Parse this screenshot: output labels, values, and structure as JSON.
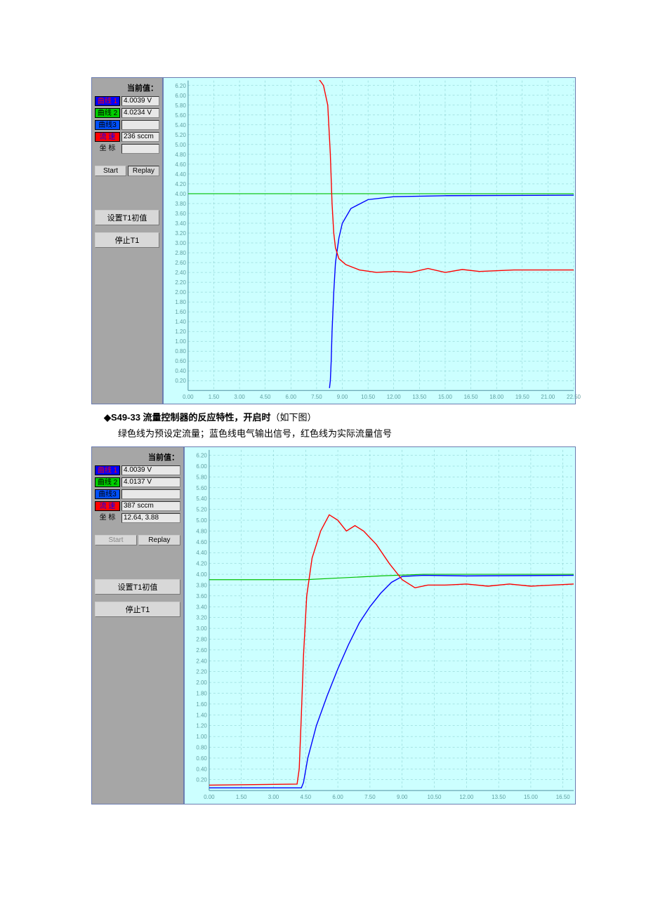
{
  "caption": {
    "title_bold": "◆S49-33 流量控制器的反应特性，开启时",
    "title_rest": "（如下图）",
    "subtitle": "绿色线为预设定流量；蓝色线电气输出信号，红色线为实际流量信号"
  },
  "panel1": {
    "current_label": "当前值：",
    "curve1": {
      "label": "曲线 1",
      "value": "4.0039 V",
      "color": "#0000ff",
      "text": "#ff0000"
    },
    "curve2": {
      "label": "曲线 2",
      "value": "4.0234 V",
      "color": "#00d000",
      "text": "#000000"
    },
    "curve3": {
      "label": "曲线3",
      "value": "",
      "color": "#0050ff",
      "text": "#000000"
    },
    "flow": {
      "label": "流 速",
      "value": "236 sccm",
      "color": "#ff0000",
      "text": "#0000ff"
    },
    "coord": {
      "label": "坐 标",
      "value": ""
    },
    "start": "Start",
    "replay": "Replay",
    "setT1": "设置T1初值",
    "stopT1": "停止T1",
    "chart": {
      "bg": "#ccffff",
      "grid": "#7fc8c8",
      "axis": "#5090a0",
      "tick_color": "#5f9ea0",
      "tick_fontsize": 8,
      "ylim": [
        0,
        6.3
      ],
      "yticks": [
        0.2,
        0.4,
        0.6,
        0.8,
        1.0,
        1.2,
        1.4,
        1.6,
        1.8,
        2.0,
        2.2,
        2.4,
        2.6,
        2.8,
        3.0,
        3.2,
        3.4,
        3.6,
        3.8,
        4.0,
        4.2,
        4.4,
        4.6,
        4.8,
        5.0,
        5.2,
        5.4,
        5.6,
        5.8,
        6.0,
        6.2
      ],
      "xlim": [
        0,
        22.5
      ],
      "xticks": [
        0.0,
        1.5,
        3.0,
        4.5,
        6.0,
        7.5,
        9.0,
        10.5,
        12.0,
        13.5,
        15.0,
        16.5,
        18.0,
        19.5,
        21.0,
        22.5
      ],
      "green": {
        "color": "#00c000",
        "width": 1.2,
        "points": [
          [
            0,
            4.0
          ],
          [
            22.5,
            4.0
          ]
        ]
      },
      "blue": {
        "color": "#0000ff",
        "width": 1.4,
        "points": [
          [
            8.25,
            0.05
          ],
          [
            8.3,
            0.2
          ],
          [
            8.35,
            0.6
          ],
          [
            8.4,
            1.2
          ],
          [
            8.5,
            2.0
          ],
          [
            8.6,
            2.6
          ],
          [
            8.8,
            3.1
          ],
          [
            9.0,
            3.4
          ],
          [
            9.5,
            3.7
          ],
          [
            10.5,
            3.88
          ],
          [
            12.0,
            3.94
          ],
          [
            15.0,
            3.96
          ],
          [
            22.5,
            3.97
          ]
        ]
      },
      "red": {
        "color": "#ff0000",
        "width": 1.4,
        "points": [
          [
            7.65,
            6.3
          ],
          [
            7.7,
            6.3
          ],
          [
            7.9,
            6.2
          ],
          [
            8.15,
            5.8
          ],
          [
            8.3,
            4.8
          ],
          [
            8.4,
            3.8
          ],
          [
            8.5,
            3.2
          ],
          [
            8.6,
            2.9
          ],
          [
            8.8,
            2.68
          ],
          [
            9.2,
            2.56
          ],
          [
            10.0,
            2.45
          ],
          [
            11.0,
            2.4
          ],
          [
            12.0,
            2.42
          ],
          [
            13.0,
            2.4
          ],
          [
            14.0,
            2.48
          ],
          [
            15.0,
            2.4
          ],
          [
            16.0,
            2.46
          ],
          [
            17.0,
            2.42
          ],
          [
            19.0,
            2.45
          ],
          [
            22.5,
            2.45
          ]
        ]
      }
    }
  },
  "panel2": {
    "current_label": "当前值：",
    "curve1": {
      "label": "曲线 1",
      "value": "4.0039 V"
    },
    "curve2": {
      "label": "曲线 2",
      "value": "4.0137 V"
    },
    "curve3": {
      "label": "曲线3",
      "value": ""
    },
    "flow": {
      "label": "流 速",
      "value": "387 sccm"
    },
    "coord": {
      "label": "坐 标",
      "value": "12.64, 3.88"
    },
    "start": "Start",
    "replay": "Replay",
    "setT1": "设置T1初值",
    "stopT1": "停止T1",
    "chart": {
      "bg": "#ccffff",
      "grid": "#7fc8c8",
      "axis": "#5090a0",
      "tick_color": "#5f9ea0",
      "tick_fontsize": 8,
      "ylim": [
        0,
        6.3
      ],
      "yticks": [
        0.2,
        0.4,
        0.6,
        0.8,
        1.0,
        1.2,
        1.4,
        1.6,
        1.8,
        2.0,
        2.2,
        2.4,
        2.6,
        2.8,
        3.0,
        3.2,
        3.4,
        3.6,
        3.8,
        4.0,
        4.2,
        4.4,
        4.6,
        4.8,
        5.0,
        5.2,
        5.4,
        5.6,
        5.8,
        6.0,
        6.2
      ],
      "xlim": [
        0,
        17.0
      ],
      "xticks": [
        0.0,
        1.5,
        3.0,
        4.5,
        6.0,
        7.5,
        9.0,
        10.5,
        12.0,
        13.5,
        15.0,
        16.5
      ],
      "green": {
        "color": "#00c000",
        "width": 1.2,
        "points": [
          [
            0,
            3.9
          ],
          [
            4.5,
            3.9
          ],
          [
            6.0,
            3.93
          ],
          [
            8.0,
            3.97
          ],
          [
            10.0,
            4.0
          ],
          [
            17.0,
            4.0
          ]
        ]
      },
      "blue": {
        "color": "#0000ff",
        "width": 1.4,
        "points": [
          [
            0,
            0.05
          ],
          [
            4.3,
            0.05
          ],
          [
            4.4,
            0.15
          ],
          [
            4.6,
            0.6
          ],
          [
            5.0,
            1.2
          ],
          [
            5.5,
            1.75
          ],
          [
            6.0,
            2.25
          ],
          [
            6.5,
            2.7
          ],
          [
            7.0,
            3.1
          ],
          [
            7.5,
            3.4
          ],
          [
            8.0,
            3.65
          ],
          [
            8.5,
            3.85
          ],
          [
            9.0,
            3.96
          ],
          [
            10.0,
            3.98
          ],
          [
            12.0,
            3.97
          ],
          [
            17.0,
            3.98
          ]
        ]
      },
      "red": {
        "color": "#ff0000",
        "width": 1.4,
        "points": [
          [
            0,
            0.1
          ],
          [
            4.1,
            0.12
          ],
          [
            4.2,
            0.4
          ],
          [
            4.3,
            1.4
          ],
          [
            4.4,
            2.5
          ],
          [
            4.55,
            3.6
          ],
          [
            4.8,
            4.3
          ],
          [
            5.2,
            4.8
          ],
          [
            5.6,
            5.1
          ],
          [
            6.0,
            5.0
          ],
          [
            6.4,
            4.8
          ],
          [
            6.8,
            4.9
          ],
          [
            7.2,
            4.8
          ],
          [
            7.8,
            4.55
          ],
          [
            8.4,
            4.2
          ],
          [
            9.0,
            3.9
          ],
          [
            9.6,
            3.75
          ],
          [
            10.2,
            3.8
          ],
          [
            11.0,
            3.8
          ],
          [
            12.0,
            3.82
          ],
          [
            13.0,
            3.78
          ],
          [
            14.0,
            3.82
          ],
          [
            15.0,
            3.78
          ],
          [
            17.0,
            3.82
          ]
        ]
      }
    }
  }
}
